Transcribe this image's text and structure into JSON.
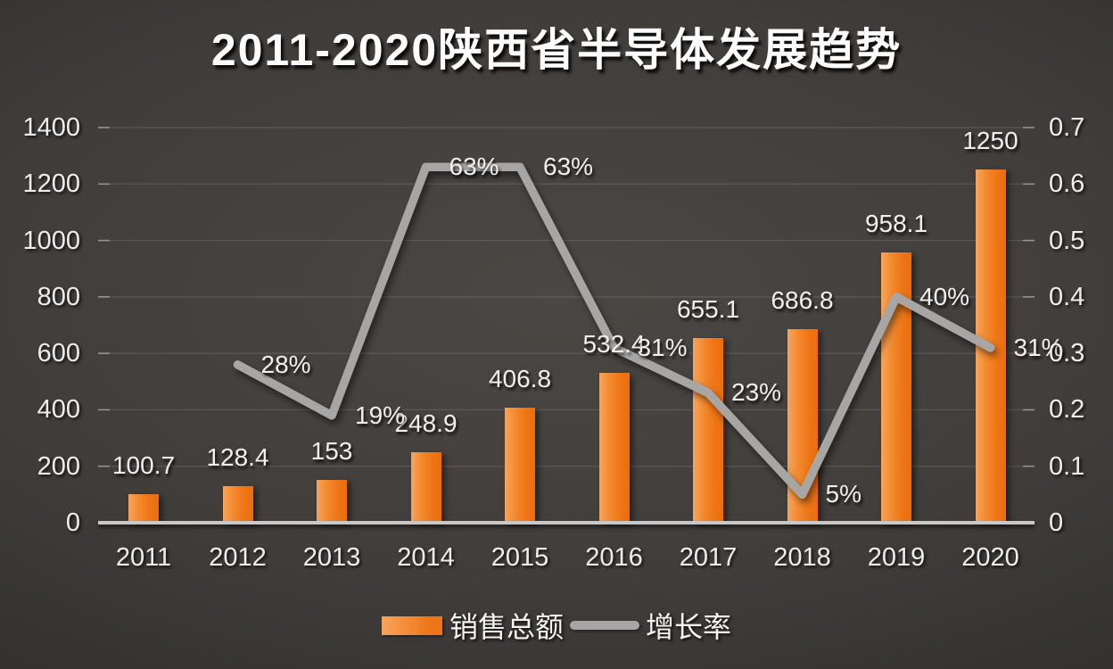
{
  "chart_data": {
    "type": "combo-bar-line",
    "title": "2011-2020陕西省半导体发展趋势",
    "categories": [
      "2011",
      "2012",
      "2013",
      "2014",
      "2015",
      "2016",
      "2017",
      "2018",
      "2019",
      "2020"
    ],
    "series": [
      {
        "name": "销售总额",
        "type": "bar",
        "axis": "left",
        "color": "#ed7d31",
        "values": [
          100.7,
          128.4,
          153,
          248.9,
          406.8,
          532.4,
          655.1,
          686.8,
          958.1,
          1250
        ],
        "labels": [
          "100.7",
          "128.4",
          "153",
          "248.9",
          "406.8",
          "532.4",
          "655.1",
          "686.8",
          "958.1",
          "1250"
        ]
      },
      {
        "name": "增长率",
        "type": "line",
        "axis": "right",
        "color": "#a8a6a4",
        "values": [
          null,
          0.28,
          0.19,
          0.63,
          0.63,
          0.31,
          0.23,
          0.05,
          0.4,
          0.31
        ],
        "labels": [
          null,
          "28%",
          "19%",
          "63%",
          "63%",
          "31%",
          "23%",
          "5%",
          "40%",
          "31%"
        ]
      }
    ],
    "left_axis": {
      "min": 0,
      "max": 1400,
      "step": 200,
      "tick_labels": [
        "0",
        "200",
        "400",
        "600",
        "800",
        "1000",
        "1200",
        "1400"
      ]
    },
    "right_axis": {
      "min": 0,
      "max": 0.7,
      "step": 0.1,
      "tick_labels": [
        "0",
        "0.1",
        "0.2",
        "0.3",
        "0.4",
        "0.5",
        "0.6",
        "0.7"
      ]
    },
    "grid": true,
    "legend_position": "bottom"
  },
  "colors": {
    "bar": "#ee7517",
    "bar_light": "#f9a45c",
    "line": "#a8a6a4",
    "grid": "rgba(255,255,255,0.13)",
    "axis_line": "#cac8c6",
    "background_center": "#4b4744",
    "background_edge": "#272525",
    "text": "#f1efed"
  }
}
